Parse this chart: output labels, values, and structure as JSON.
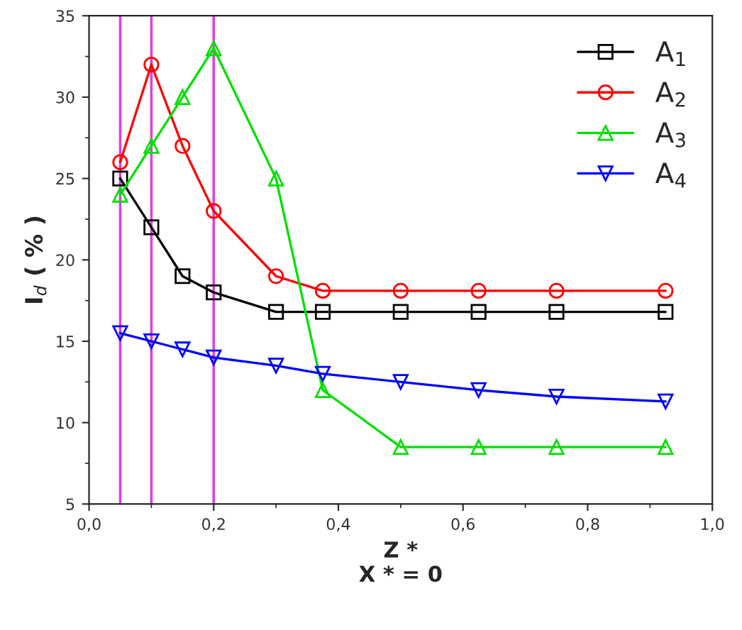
{
  "chart_data": {
    "type": "line",
    "xlabel": "Z *\nX * = 0",
    "ylabel": "I$_{d}$ ( % )",
    "x": [
      0.05,
      0.1,
      0.15,
      0.2,
      0.3,
      0.375,
      0.5,
      0.625,
      0.75,
      0.925
    ],
    "series": [
      {
        "name": "A$_{1}$",
        "color": "#000000",
        "marker": "square",
        "values": [
          25,
          22,
          19,
          18,
          16.8,
          16.8,
          16.8,
          16.8,
          16.8,
          16.8
        ]
      },
      {
        "name": "A$_{2}$",
        "color": "#ff0000",
        "marker": "circle",
        "values": [
          26,
          32,
          27,
          23,
          19,
          18.1,
          18.1,
          18.1,
          18.1,
          18.1
        ]
      },
      {
        "name": "A$_{3}$",
        "color": "#00e000",
        "marker": "triangle",
        "values": [
          24,
          27,
          30,
          33,
          25,
          12,
          8.5,
          8.5,
          8.5,
          8.5
        ]
      },
      {
        "name": "A$_{4}$",
        "color": "#0000ff",
        "marker": "triangle-down",
        "values": [
          15.5,
          15,
          14.5,
          14,
          13.5,
          13,
          12.5,
          12,
          11.6,
          11.3
        ]
      }
    ],
    "ref_lines": [
      {
        "axis": "x",
        "value": 0.05,
        "color": "#e040e0"
      },
      {
        "axis": "x",
        "value": 0.1,
        "color": "#e040e0"
      },
      {
        "axis": "x",
        "value": 0.2,
        "color": "#e040e0"
      }
    ],
    "xlim": [
      0,
      1.0
    ],
    "xticks": [
      {
        "value": 0,
        "label": "0,0"
      },
      {
        "value": 0.2,
        "label": "0,2"
      },
      {
        "value": 0.4,
        "label": "0,4"
      },
      {
        "value": 0.6,
        "label": "0,6"
      },
      {
        "value": 0.8,
        "label": "0,8"
      },
      {
        "value": 1.0,
        "label": "1,0"
      }
    ],
    "ylim": [
      5,
      35
    ],
    "yticks": [
      5,
      10,
      15,
      20,
      25,
      30,
      35
    ],
    "grid": false,
    "legend": "top right",
    "line_style": "solid"
  }
}
